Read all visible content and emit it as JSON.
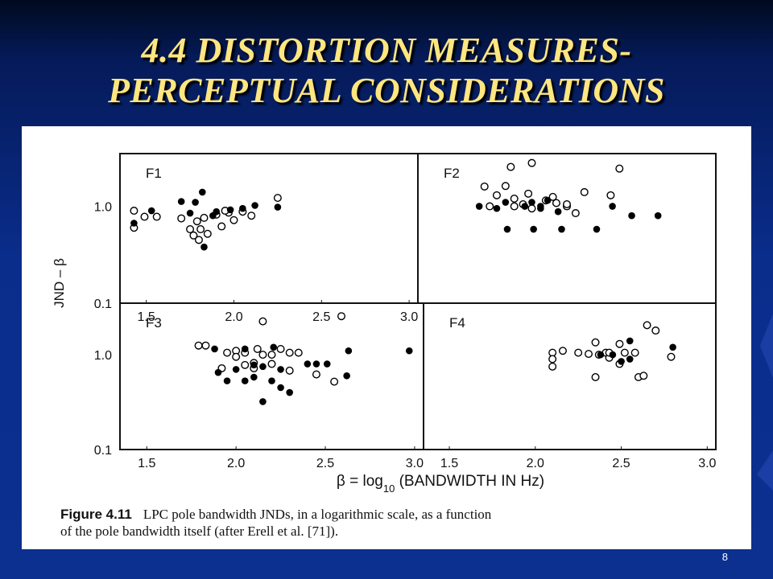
{
  "slide": {
    "title_line1": "4.4 DISTORTION MEASURES-",
    "title_line2": "PERCEPTUAL CONSIDERATIONS",
    "page_number": "8",
    "colors": {
      "background": "#0a2d8c",
      "title": "#ffe680",
      "panel": "#ffffff"
    }
  },
  "figure": {
    "caption_label": "Figure 4.11",
    "caption_line1": "LPC pole bandwidth JNDs, in a logarithmic scale, as a function",
    "caption_line2": "of the pole bandwidth itself (after Erell et al. [71]).",
    "ylabel": "JND – β",
    "xlabel_prefix": "β = log",
    "xlabel_sub": "10",
    "xlabel_suffix": " (BANDWIDTH IN Hz)"
  },
  "chart_data": [
    {
      "type": "scatter",
      "title": "F1",
      "xlim": [
        1.35,
        3.05
      ],
      "ylim": [
        0.1,
        3.5
      ],
      "yscale": "log",
      "xticks": [
        1.5,
        2.0,
        2.5,
        3.0
      ],
      "yticks": [
        "1.0",
        "0.1"
      ],
      "grid": false,
      "series": [
        {
          "marker": "open",
          "points": [
            [
              1.43,
              0.9
            ],
            [
              1.49,
              0.78
            ],
            [
              1.56,
              0.78
            ],
            [
              1.43,
              0.6
            ],
            [
              1.7,
              0.75
            ],
            [
              1.75,
              0.58
            ],
            [
              1.79,
              0.7
            ],
            [
              1.81,
              0.58
            ],
            [
              1.83,
              0.76
            ],
            [
              1.85,
              0.52
            ],
            [
              1.77,
              0.5
            ],
            [
              1.9,
              0.82
            ],
            [
              1.93,
              0.62
            ],
            [
              1.97,
              0.86
            ],
            [
              2.0,
              0.72
            ],
            [
              2.05,
              0.88
            ],
            [
              2.1,
              0.8
            ],
            [
              1.95,
              0.9
            ],
            [
              1.8,
              0.45
            ],
            [
              2.25,
              1.22
            ]
          ]
        },
        {
          "marker": "filled",
          "points": [
            [
              1.43,
              0.67
            ],
            [
              1.53,
              0.9
            ],
            [
              1.7,
              1.12
            ],
            [
              1.78,
              1.1
            ],
            [
              1.82,
              1.4
            ],
            [
              1.83,
              0.38
            ],
            [
              1.9,
              0.88
            ],
            [
              1.98,
              0.92
            ],
            [
              2.05,
              0.95
            ],
            [
              2.12,
              1.02
            ],
            [
              2.25,
              0.98
            ],
            [
              1.75,
              0.85
            ],
            [
              1.88,
              0.8
            ]
          ]
        }
      ]
    },
    {
      "type": "scatter",
      "title": "F2",
      "xlim": [
        1.35,
        3.05
      ],
      "ylim": [
        0.1,
        3.5
      ],
      "yscale": "log",
      "grid": false,
      "series": [
        {
          "marker": "open",
          "points": [
            [
              1.88,
              2.55
            ],
            [
              2.0,
              2.8
            ],
            [
              2.5,
              2.45
            ],
            [
              1.73,
              1.6
            ],
            [
              1.85,
              1.62
            ],
            [
              1.8,
              1.3
            ],
            [
              1.9,
              1.2
            ],
            [
              1.95,
              1.05
            ],
            [
              2.0,
              0.95
            ],
            [
              2.08,
              1.15
            ],
            [
              2.12,
              1.25
            ],
            [
              2.2,
              1.0
            ],
            [
              2.25,
              0.85
            ],
            [
              1.76,
              1.0
            ],
            [
              1.98,
              1.35
            ],
            [
              2.14,
              1.08
            ],
            [
              2.3,
              1.4
            ],
            [
              2.45,
              1.3
            ],
            [
              1.9,
              1.0
            ],
            [
              2.2,
              1.05
            ]
          ]
        },
        {
          "marker": "filled",
          "points": [
            [
              1.7,
              1.0
            ],
            [
              1.8,
              0.95
            ],
            [
              1.85,
              1.1
            ],
            [
              1.96,
              1.0
            ],
            [
              2.0,
              1.1
            ],
            [
              2.05,
              1.0
            ],
            [
              2.09,
              1.15
            ],
            [
              2.15,
              0.88
            ],
            [
              2.46,
              1.0
            ],
            [
              1.86,
              0.58
            ],
            [
              2.01,
              0.58
            ],
            [
              2.17,
              0.58
            ],
            [
              2.37,
              0.58
            ],
            [
              2.57,
              0.8
            ],
            [
              2.72,
              0.8
            ],
            [
              2.05,
              0.95
            ]
          ]
        }
      ]
    },
    {
      "type": "scatter",
      "title": "F3",
      "xlim": [
        1.35,
        3.05
      ],
      "ylim": [
        0.1,
        3.5
      ],
      "yscale": "log",
      "xticks": [
        1.5,
        2.0,
        2.5,
        3.0
      ],
      "grid": false,
      "series": [
        {
          "marker": "open",
          "points": [
            [
              2.15,
              2.25
            ],
            [
              2.59,
              2.55
            ],
            [
              1.79,
              1.25
            ],
            [
              1.83,
              1.25
            ],
            [
              1.95,
              1.05
            ],
            [
              2.0,
              1.1
            ],
            [
              2.05,
              1.05
            ],
            [
              2.12,
              1.15
            ],
            [
              2.2,
              1.0
            ],
            [
              2.25,
              1.15
            ],
            [
              2.3,
              1.05
            ],
            [
              2.0,
              0.95
            ],
            [
              2.1,
              0.82
            ],
            [
              2.2,
              0.8
            ],
            [
              2.3,
              0.68
            ],
            [
              2.1,
              0.72
            ],
            [
              2.45,
              0.62
            ],
            [
              1.92,
              0.72
            ],
            [
              2.55,
              0.52
            ],
            [
              2.35,
              1.05
            ],
            [
              2.05,
              0.78
            ],
            [
              2.15,
              1.0
            ]
          ]
        },
        {
          "marker": "filled",
          "points": [
            [
              1.88,
              1.15
            ],
            [
              2.05,
              1.15
            ],
            [
              2.21,
              1.2
            ],
            [
              2.45,
              0.8
            ],
            [
              2.51,
              0.8
            ],
            [
              2.63,
              1.1
            ],
            [
              2.62,
              0.6
            ],
            [
              2.97,
              1.1
            ],
            [
              1.9,
              0.65
            ],
            [
              1.95,
              0.53
            ],
            [
              2.05,
              0.53
            ],
            [
              2.1,
              0.58
            ],
            [
              2.2,
              0.53
            ],
            [
              2.25,
              0.45
            ],
            [
              2.3,
              0.4
            ],
            [
              2.15,
              0.32
            ],
            [
              2.15,
              0.75
            ],
            [
              2.25,
              0.7
            ],
            [
              2.4,
              0.8
            ],
            [
              2.0,
              0.7
            ],
            [
              2.1,
              0.78
            ]
          ]
        }
      ]
    },
    {
      "type": "scatter",
      "title": "F4",
      "xlim": [
        1.35,
        3.05
      ],
      "ylim": [
        0.1,
        3.5
      ],
      "yscale": "log",
      "xticks": [
        1.5,
        2.0,
        2.5,
        3.0
      ],
      "grid": false,
      "series": [
        {
          "marker": "open",
          "points": [
            [
              2.65,
              2.05
            ],
            [
              2.7,
              1.8
            ],
            [
              2.35,
              1.35
            ],
            [
              2.1,
              1.05
            ],
            [
              2.16,
              1.1
            ],
            [
              2.1,
              0.9
            ],
            [
              2.1,
              0.75
            ],
            [
              2.25,
              1.05
            ],
            [
              2.31,
              1.02
            ],
            [
              2.37,
              1.0
            ],
            [
              2.41,
              1.05
            ],
            [
              2.49,
              1.3
            ],
            [
              2.52,
              1.05
            ],
            [
              2.58,
              1.05
            ],
            [
              2.43,
              0.93
            ],
            [
              2.49,
              0.8
            ],
            [
              2.35,
              0.58
            ],
            [
              2.6,
              0.58
            ],
            [
              2.63,
              0.6
            ],
            [
              2.79,
              0.95
            ],
            [
              2.43,
              1.05
            ]
          ]
        },
        {
          "marker": "filled",
          "points": [
            [
              2.8,
              1.2
            ],
            [
              2.38,
              1.0
            ],
            [
              2.45,
              1.0
            ],
            [
              2.55,
              1.4
            ],
            [
              2.5,
              0.85
            ],
            [
              2.55,
              0.9
            ]
          ]
        }
      ]
    }
  ]
}
